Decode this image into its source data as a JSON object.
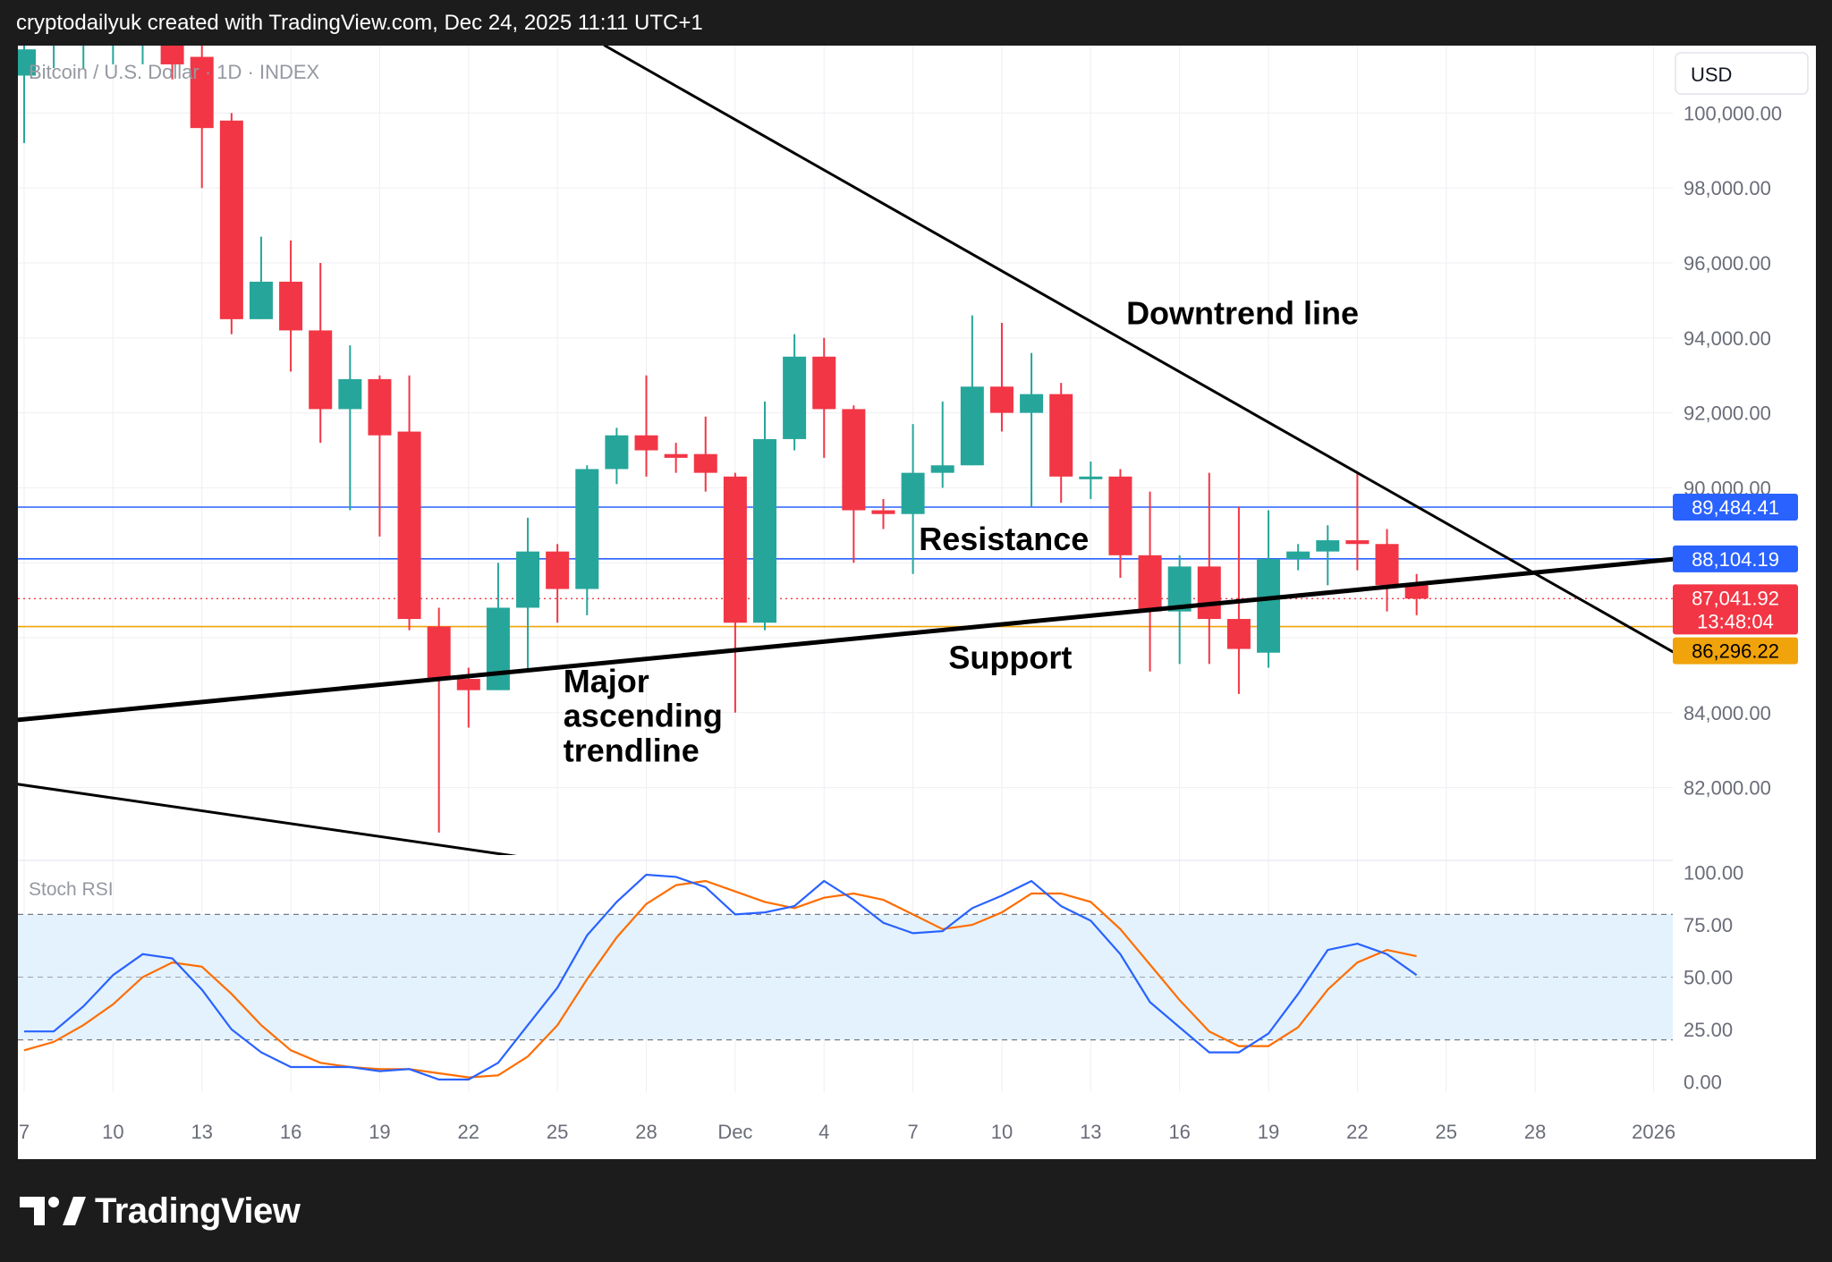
{
  "header": {
    "text": "cryptodailyuk created with TradingView.com, Dec 24, 2025 11:11 UTC+1"
  },
  "footer": {
    "brand": "TradingView",
    "logo_icon": "tradingview-logo-icon"
  },
  "colors": {
    "up": "#26a69a",
    "down": "#f23645",
    "blue_line": "#2962ff",
    "support_line": "#f0a30a",
    "stoch_k": "#2962ff",
    "stoch_d": "#ff6d00",
    "band_fill": "#e3f2fd"
  },
  "chart_data": {
    "type": "candlestick",
    "symbol_label": "Bitcoin / U.S. Dollar · 1D · INDEX",
    "currency": "USD",
    "ylim": [
      80200,
      101800
    ],
    "y_ticks": [
      {
        "value": 100000,
        "label": "100,000.00"
      },
      {
        "value": 98000,
        "label": "98,000.00"
      },
      {
        "value": 96000,
        "label": "96,000.00"
      },
      {
        "value": 94000,
        "label": "94,000.00"
      },
      {
        "value": 92000,
        "label": "92,000.00"
      },
      {
        "value": 90000,
        "label": "90,000.00"
      },
      {
        "value": 84000,
        "label": "84,000.00"
      },
      {
        "value": 82000,
        "label": "82,000.00"
      }
    ],
    "x_ticks": [
      {
        "index": 0,
        "label": "7"
      },
      {
        "index": 3,
        "label": "10"
      },
      {
        "index": 6,
        "label": "13"
      },
      {
        "index": 9,
        "label": "16"
      },
      {
        "index": 12,
        "label": "19"
      },
      {
        "index": 15,
        "label": "22"
      },
      {
        "index": 18,
        "label": "25"
      },
      {
        "index": 21,
        "label": "28"
      },
      {
        "index": 24,
        "label": "Dec"
      },
      {
        "index": 27,
        "label": "4"
      },
      {
        "index": 30,
        "label": "7"
      },
      {
        "index": 33,
        "label": "10"
      },
      {
        "index": 36,
        "label": "13"
      },
      {
        "index": 39,
        "label": "16"
      },
      {
        "index": 42,
        "label": "19"
      },
      {
        "index": 45,
        "label": "22"
      },
      {
        "index": 48,
        "label": "25"
      },
      {
        "index": 51,
        "label": "28"
      },
      {
        "index": 55,
        "label": "2026"
      }
    ],
    "candles": [
      {
        "o": 101000,
        "h": 102000,
        "l": 99200,
        "c": 101700
      },
      {
        "o": 102000,
        "h": 102300,
        "l": 101200,
        "c": 102100
      },
      {
        "o": 102000,
        "h": 102300,
        "l": 101200,
        "c": 102100
      },
      {
        "o": 102000,
        "h": 102200,
        "l": 101300,
        "c": 102100
      },
      {
        "o": 102000,
        "h": 102200,
        "l": 101300,
        "c": 102100
      },
      {
        "o": 102000,
        "h": 102300,
        "l": 100900,
        "c": 101300
      },
      {
        "o": 101500,
        "h": 102000,
        "l": 98000,
        "c": 99600
      },
      {
        "o": 99800,
        "h": 100000,
        "l": 94100,
        "c": 94500
      },
      {
        "o": 94500,
        "h": 96700,
        "l": 94500,
        "c": 95500
      },
      {
        "o": 95500,
        "h": 96600,
        "l": 93100,
        "c": 94200
      },
      {
        "o": 94200,
        "h": 96000,
        "l": 91200,
        "c": 92100
      },
      {
        "o": 92100,
        "h": 93800,
        "l": 89400,
        "c": 92900
      },
      {
        "o": 92900,
        "h": 93000,
        "l": 88700,
        "c": 91400
      },
      {
        "o": 91500,
        "h": 93000,
        "l": 86200,
        "c": 86500
      },
      {
        "o": 86300,
        "h": 86800,
        "l": 80800,
        "c": 84900
      },
      {
        "o": 84900,
        "h": 85200,
        "l": 83600,
        "c": 84600
      },
      {
        "o": 84600,
        "h": 88000,
        "l": 84600,
        "c": 86800
      },
      {
        "o": 86800,
        "h": 89200,
        "l": 85100,
        "c": 88300
      },
      {
        "o": 88300,
        "h": 88500,
        "l": 86400,
        "c": 87300
      },
      {
        "o": 87300,
        "h": 90600,
        "l": 86600,
        "c": 90500
      },
      {
        "o": 90500,
        "h": 91600,
        "l": 90100,
        "c": 91400
      },
      {
        "o": 91400,
        "h": 93000,
        "l": 90300,
        "c": 91000
      },
      {
        "o": 90900,
        "h": 91200,
        "l": 90400,
        "c": 90800
      },
      {
        "o": 90900,
        "h": 91900,
        "l": 89900,
        "c": 90400
      },
      {
        "o": 90300,
        "h": 90400,
        "l": 84000,
        "c": 86400
      },
      {
        "o": 86400,
        "h": 92300,
        "l": 86200,
        "c": 91300
      },
      {
        "o": 91300,
        "h": 94100,
        "l": 91000,
        "c": 93500
      },
      {
        "o": 93500,
        "h": 94000,
        "l": 90800,
        "c": 92100
      },
      {
        "o": 92100,
        "h": 92200,
        "l": 88000,
        "c": 89400
      },
      {
        "o": 89400,
        "h": 89700,
        "l": 88900,
        "c": 89300
      },
      {
        "o": 89300,
        "h": 91700,
        "l": 87700,
        "c": 90400
      },
      {
        "o": 90400,
        "h": 92300,
        "l": 90000,
        "c": 90600
      },
      {
        "o": 90600,
        "h": 94600,
        "l": 90600,
        "c": 92700
      },
      {
        "o": 92700,
        "h": 94400,
        "l": 91500,
        "c": 92000
      },
      {
        "o": 92000,
        "h": 93600,
        "l": 89500,
        "c": 92500
      },
      {
        "o": 92500,
        "h": 92800,
        "l": 89600,
        "c": 90300
      },
      {
        "o": 90300,
        "h": 90700,
        "l": 89700,
        "c": 90300
      },
      {
        "o": 90300,
        "h": 90500,
        "l": 87600,
        "c": 88200
      },
      {
        "o": 88200,
        "h": 89900,
        "l": 85100,
        "c": 86700
      },
      {
        "o": 86700,
        "h": 88200,
        "l": 85300,
        "c": 87900
      },
      {
        "o": 87900,
        "h": 90400,
        "l": 85300,
        "c": 86500
      },
      {
        "o": 86500,
        "h": 89500,
        "l": 84500,
        "c": 85700
      },
      {
        "o": 85600,
        "h": 89400,
        "l": 85200,
        "c": 88100
      },
      {
        "o": 88100,
        "h": 88500,
        "l": 87800,
        "c": 88300
      },
      {
        "o": 88300,
        "h": 89000,
        "l": 87400,
        "c": 88600
      },
      {
        "o": 88600,
        "h": 90400,
        "l": 87800,
        "c": 88500
      },
      {
        "o": 88500,
        "h": 88900,
        "l": 86700,
        "c": 87400
      },
      {
        "o": 87400,
        "h": 87700,
        "l": 86600,
        "c": 87042
      }
    ],
    "price_labels": [
      {
        "value": 89484.41,
        "label": "89,484.41",
        "color": "#2962ff",
        "text_color": "#ffffff"
      },
      {
        "value": 88104.19,
        "label": "88,104.19",
        "color": "#2962ff",
        "text_color": "#ffffff"
      },
      {
        "value": 87041.92,
        "label": "87,041.92",
        "sub": "13:48:04",
        "color": "#f23645",
        "text_color": "#ffffff"
      },
      {
        "value": 86296.22,
        "label": "86,296.22",
        "color": "#f0a30a",
        "text_color": "#000000"
      }
    ],
    "horizontal_lines": [
      {
        "value": 89484.41,
        "color": "#2962ff"
      },
      {
        "value": 88104.19,
        "color": "#2962ff"
      },
      {
        "value": 86296.22,
        "color": "#f0a30a"
      },
      {
        "value": 87041.92,
        "color": "#f23645",
        "dotted": true
      }
    ],
    "trendlines": [
      {
        "name": "Downtrend line",
        "from": {
          "index": 19.6,
          "value": 101800
        },
        "to": {
          "index": 55.7,
          "value": 85600
        },
        "width": 3
      },
      {
        "name": "Major ascending trendline",
        "from": {
          "index": -0.3,
          "value": 83800
        },
        "to": {
          "index": 55.7,
          "value": 88100
        },
        "width": 5
      },
      {
        "name": "lower line",
        "from": {
          "index": -0.3,
          "value": 82100
        },
        "to": {
          "index": 17.2,
          "value": 80100
        },
        "width": 3
      }
    ],
    "annotations": [
      {
        "text": "Downtrend line",
        "index": 37.2,
        "value": 94370
      },
      {
        "text": "Resistance",
        "index": 30.2,
        "value": 88340
      },
      {
        "text": "Support",
        "index": 31.2,
        "value": 85180
      },
      {
        "text": "Major",
        "index": 18.2,
        "value": 84540
      },
      {
        "text": "ascending",
        "index": 18.2,
        "value": 83620
      },
      {
        "text": "trendline",
        "index": 18.2,
        "value": 82700
      }
    ],
    "stoch_rsi": {
      "label": "Stoch RSI",
      "ylim": [
        -5,
        105
      ],
      "y_ticks": [
        {
          "value": 100,
          "label": "100.00"
        },
        {
          "value": 75,
          "label": "75.00"
        },
        {
          "value": 50,
          "label": "50.00"
        },
        {
          "value": 25,
          "label": "25.00"
        },
        {
          "value": 0,
          "label": "0.00"
        }
      ],
      "bands": [
        20,
        80
      ],
      "k": [
        24,
        24,
        36,
        51,
        61,
        59,
        44,
        25,
        14,
        7,
        7,
        7,
        5,
        6,
        1,
        1,
        9,
        27,
        45,
        70,
        86,
        99,
        98,
        93,
        80,
        81,
        84,
        96,
        87,
        76,
        71,
        72,
        83,
        89,
        96,
        84,
        77,
        61,
        38,
        26,
        14,
        14,
        23,
        42,
        63,
        66,
        61,
        51
      ],
      "d": [
        15,
        19,
        27,
        37,
        50,
        57,
        55,
        42,
        27,
        15,
        9,
        7,
        6,
        6,
        4,
        2,
        3,
        12,
        27,
        49,
        69,
        85,
        94,
        96,
        91,
        86,
        83,
        88,
        90,
        87,
        80,
        73,
        75,
        81,
        90,
        90,
        86,
        73,
        56,
        39,
        24,
        17,
        17,
        26,
        44,
        57,
        63,
        60
      ]
    }
  }
}
